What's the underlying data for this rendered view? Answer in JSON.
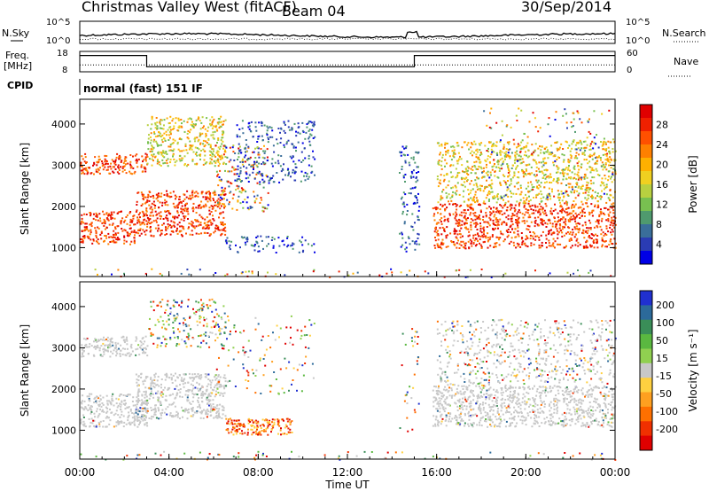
{
  "header": {
    "station": "Christmas Valley West (fitACF)",
    "beam": "Beam 04",
    "date": "30/Sep/2014",
    "mode": "normal (fast) 151 IF"
  },
  "side_labels": {
    "nsky": "N.Sky",
    "nsearch": "N.Search",
    "freq_line1": "Freq.",
    "freq_line2": "[MHz]",
    "nave": "Nave",
    "cpid": "CPID"
  },
  "noise_axis": {
    "left_ticks": [
      "10^5",
      "10^0"
    ],
    "right_ticks": [
      "10^5",
      "10^0"
    ]
  },
  "freq_axis": {
    "left_ticks": [
      "18",
      "8"
    ],
    "right_ticks": [
      "60",
      "0"
    ]
  },
  "chart_data": [
    {
      "type": "line",
      "name": "noise",
      "series": [
        {
          "name": "N.Sky",
          "style": "solid",
          "color": "#000000"
        },
        {
          "name": "N.Search",
          "style": "dotted",
          "color": "#000000"
        }
      ]
    },
    {
      "type": "line",
      "name": "frequency_nave",
      "series": [
        {
          "name": "Freq.",
          "style": "solid",
          "x_hours": [
            0,
            3,
            3,
            15,
            15,
            24
          ],
          "values": [
            16,
            16,
            10.5,
            10.5,
            16,
            16
          ]
        },
        {
          "name": "Nave",
          "style": "dotted",
          "x_hours": [
            0,
            3,
            3,
            15,
            15,
            24
          ],
          "values": [
            20,
            20,
            20,
            20,
            20,
            20
          ]
        }
      ]
    },
    {
      "type": "heatmap",
      "name": "power",
      "xlabel": "",
      "ylabel": "Slant Range [km]",
      "xlim_hours": [
        0,
        24
      ],
      "ylim_km": [
        300,
        4600
      ],
      "y_ticks": [
        1000,
        2000,
        3000,
        4000
      ],
      "colorbar": {
        "label": "Power [dB]",
        "ticks": [
          "4",
          "8",
          "12",
          "16",
          "20",
          "24",
          "28"
        ],
        "colors": [
          "#0000e6",
          "#2a3cb4",
          "#3a6e9a",
          "#4f9a6e",
          "#78c050",
          "#b8d040",
          "#f0d020",
          "#ffb000",
          "#ff8000",
          "#ff5000",
          "#f02000",
          "#e00000"
        ]
      },
      "regions": [
        {
          "t": [
            0.0,
            2.5
          ],
          "r": [
            1100,
            1900
          ],
          "level": "high"
        },
        {
          "t": [
            2.5,
            6.5
          ],
          "r": [
            1300,
            2400
          ],
          "level": "high"
        },
        {
          "t": [
            0.0,
            3.0
          ],
          "r": [
            2800,
            3300
          ],
          "level": "high"
        },
        {
          "t": [
            3.0,
            6.5
          ],
          "r": [
            3000,
            4200
          ],
          "level": "mid"
        },
        {
          "t": [
            6.0,
            8.5
          ],
          "r": [
            1900,
            3500
          ],
          "level": "mixed"
        },
        {
          "t": [
            7.0,
            10.5
          ],
          "r": [
            2600,
            4100
          ],
          "level": "low"
        },
        {
          "t": [
            6.5,
            10.5
          ],
          "r": [
            900,
            1300
          ],
          "level": "low"
        },
        {
          "t": [
            14.3,
            15.2
          ],
          "r": [
            900,
            3500
          ],
          "level": "low"
        },
        {
          "t": [
            15.8,
            24.0
          ],
          "r": [
            1000,
            2100
          ],
          "level": "high"
        },
        {
          "t": [
            16.0,
            24.0
          ],
          "r": [
            2100,
            3600
          ],
          "level": "mid"
        },
        {
          "t": [
            18.0,
            24.0
          ],
          "r": [
            2200,
            4400
          ],
          "level": "sparse"
        },
        {
          "t": [
            0.0,
            24.0
          ],
          "r": [
            300,
            500
          ],
          "level": "lowsparse"
        }
      ]
    },
    {
      "type": "heatmap",
      "name": "velocity",
      "xlabel": "Time UT",
      "ylabel": "Slant Range [km]",
      "xlim_hours": [
        0,
        24
      ],
      "ylim_km": [
        300,
        4600
      ],
      "x_ticks": [
        "00:00",
        "04:00",
        "08:00",
        "12:00",
        "16:00",
        "20:00",
        "00:00"
      ],
      "y_ticks": [
        1000,
        2000,
        3000,
        4000
      ],
      "colorbar": {
        "label": "Velocity [m s⁻¹]",
        "ticks": [
          "200",
          "100",
          "50",
          "15",
          "-15",
          "-50",
          "-100",
          "-200"
        ],
        "colors": [
          "#2030d0",
          "#2c6a9a",
          "#3a8e58",
          "#5ab840",
          "#90d050",
          "#c8c8c8",
          "#ffd040",
          "#ffa020",
          "#ff7000",
          "#f03000",
          "#e00000"
        ]
      },
      "regions": [
        {
          "t": [
            0.0,
            3.0
          ],
          "r": [
            1100,
            1900
          ],
          "level": "ground"
        },
        {
          "t": [
            2.5,
            6.5
          ],
          "r": [
            1300,
            2400
          ],
          "level": "ground"
        },
        {
          "t": [
            0.0,
            3.0
          ],
          "r": [
            2800,
            3300
          ],
          "level": "ground"
        },
        {
          "t": [
            3.0,
            6.5
          ],
          "r": [
            3000,
            4200
          ],
          "level": "mixed"
        },
        {
          "t": [
            6.0,
            10.5
          ],
          "r": [
            1900,
            3800
          ],
          "level": "sparse"
        },
        {
          "t": [
            6.5,
            9.5
          ],
          "r": [
            900,
            1300
          ],
          "level": "negative"
        },
        {
          "t": [
            14.3,
            15.2
          ],
          "r": [
            900,
            3500
          ],
          "level": "sparse"
        },
        {
          "t": [
            15.8,
            24.0
          ],
          "r": [
            1100,
            2100
          ],
          "level": "ground"
        },
        {
          "t": [
            16.0,
            24.0
          ],
          "r": [
            2100,
            3700
          ],
          "level": "mixedground"
        },
        {
          "t": [
            0.0,
            24.0
          ],
          "r": [
            300,
            500
          ],
          "level": "lowsparse"
        }
      ]
    }
  ]
}
